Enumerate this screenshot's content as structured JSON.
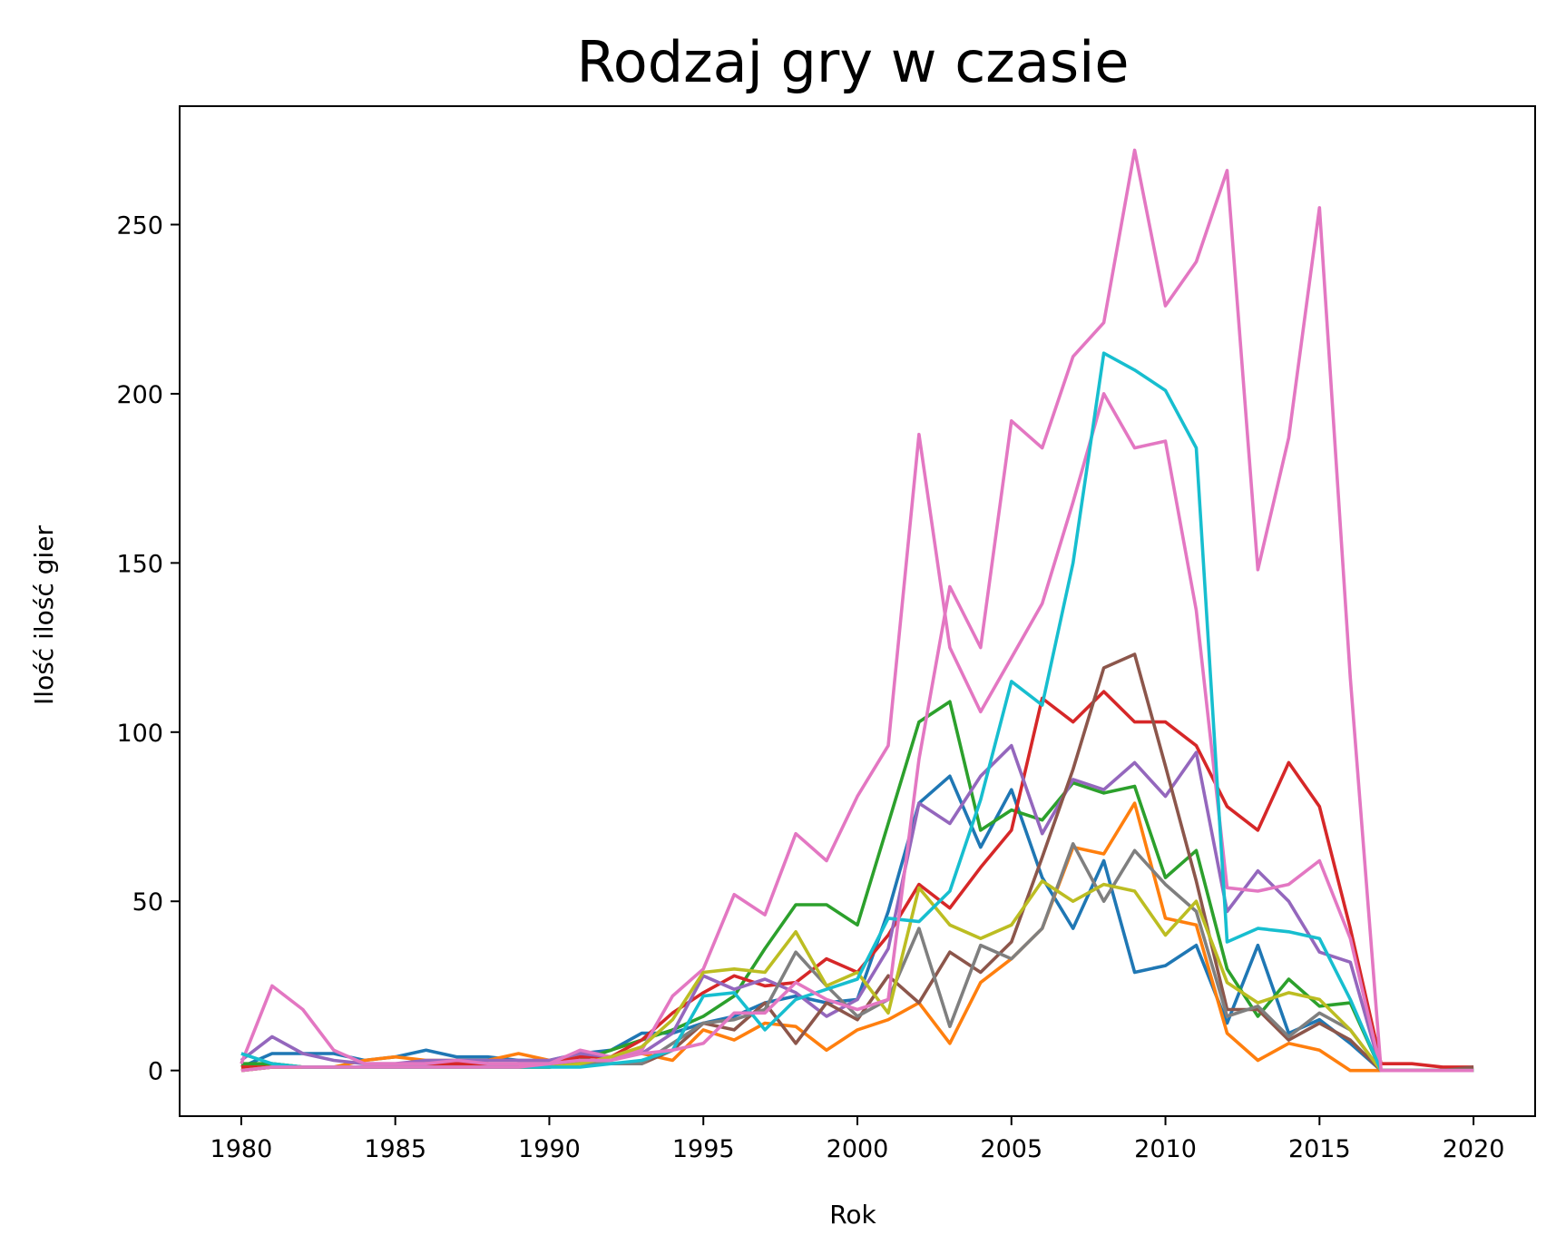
{
  "chart_data": {
    "type": "line",
    "title": "Rodzaj gry w czasie",
    "xlabel": "Rok",
    "ylabel": "Ilość ilość gier",
    "xlim": [
      1978,
      2022
    ],
    "ylim": [
      -13.5,
      285
    ],
    "x_ticks": [
      1980,
      1985,
      1990,
      1995,
      2000,
      2005,
      2010,
      2015,
      2020
    ],
    "y_ticks": [
      0,
      50,
      100,
      150,
      200,
      250
    ],
    "grid": false,
    "legend": "none",
    "x": [
      1980,
      1981,
      1982,
      1983,
      1984,
      1985,
      1986,
      1987,
      1988,
      1989,
      1990,
      1991,
      1992,
      1993,
      1994,
      1995,
      1996,
      1997,
      1998,
      1999,
      2000,
      2001,
      2002,
      2003,
      2004,
      2005,
      2006,
      2007,
      2008,
      2009,
      2010,
      2011,
      2012,
      2013,
      2014,
      2015,
      2016,
      2017,
      2018,
      2019,
      2020
    ],
    "series": [
      {
        "color": "#1f77b4",
        "values": [
          1,
          5,
          5,
          5,
          3,
          4,
          6,
          4,
          4,
          3,
          3,
          5,
          6,
          11,
          11,
          14,
          16,
          20,
          22,
          20,
          21,
          47,
          79,
          87,
          66,
          83,
          57,
          42,
          62,
          29,
          31,
          37,
          14,
          37,
          11,
          15,
          8,
          0,
          0,
          0,
          0
        ]
      },
      {
        "color": "#ff7f0e",
        "values": [
          1,
          2,
          1,
          1,
          3,
          4,
          3,
          3,
          3,
          5,
          3,
          4,
          4,
          5,
          3,
          12,
          9,
          14,
          13,
          6,
          12,
          15,
          20,
          8,
          26,
          33,
          42,
          66,
          64,
          79,
          45,
          43,
          11,
          3,
          8,
          6,
          0,
          0,
          0,
          0,
          0
        ]
      },
      {
        "color": "#2ca02c",
        "values": [
          2,
          2,
          1,
          1,
          1,
          1,
          1,
          2,
          1,
          1,
          1,
          3,
          6,
          9,
          12,
          16,
          22,
          36,
          49,
          49,
          43,
          73,
          103,
          109,
          71,
          77,
          74,
          85,
          82,
          84,
          57,
          65,
          30,
          16,
          27,
          19,
          20,
          0,
          0,
          0,
          0
        ]
      },
      {
        "color": "#d62728",
        "values": [
          1,
          1,
          1,
          1,
          1,
          1,
          2,
          2,
          2,
          2,
          2,
          4,
          4,
          9,
          17,
          23,
          28,
          25,
          26,
          33,
          29,
          40,
          55,
          48,
          60,
          71,
          110,
          103,
          112,
          103,
          103,
          96,
          78,
          71,
          91,
          78,
          42,
          2,
          2,
          1,
          1
        ]
      },
      {
        "color": "#9467bd",
        "values": [
          3,
          10,
          5,
          3,
          2,
          2,
          3,
          3,
          3,
          3,
          3,
          5,
          4,
          5,
          11,
          28,
          24,
          27,
          23,
          16,
          21,
          36,
          79,
          73,
          87,
          96,
          70,
          86,
          83,
          91,
          81,
          94,
          47,
          59,
          50,
          35,
          32,
          0,
          0,
          0,
          0
        ]
      },
      {
        "color": "#8c564b",
        "values": [
          0,
          1,
          1,
          1,
          1,
          1,
          1,
          1,
          1,
          1,
          1,
          2,
          2,
          2,
          6,
          14,
          12,
          20,
          8,
          20,
          15,
          28,
          20,
          35,
          29,
          38,
          63,
          89,
          119,
          123,
          90,
          56,
          18,
          18,
          9,
          14,
          9,
          0,
          0,
          0,
          1
        ]
      },
      {
        "color": "#e377c2",
        "values": [
          2,
          25,
          18,
          6,
          2,
          2,
          2,
          3,
          2,
          2,
          2,
          6,
          4,
          6,
          22,
          30,
          52,
          46,
          70,
          62,
          81,
          96,
          188,
          125,
          106,
          122,
          138,
          168,
          200,
          184,
          186,
          136,
          54,
          53,
          55,
          62,
          39,
          0,
          0,
          0,
          0
        ]
      },
      {
        "color": "#7f7f7f",
        "values": [
          0,
          1,
          1,
          1,
          1,
          1,
          1,
          1,
          1,
          1,
          1,
          2,
          2,
          2,
          8,
          14,
          15,
          18,
          35,
          25,
          16,
          21,
          42,
          13,
          37,
          33,
          42,
          67,
          50,
          65,
          55,
          47,
          16,
          19,
          10,
          17,
          12,
          0,
          0,
          0,
          0
        ]
      },
      {
        "color": "#bcbd22",
        "values": [
          0,
          1,
          1,
          1,
          1,
          1,
          1,
          1,
          1,
          1,
          1,
          2,
          4,
          7,
          15,
          29,
          30,
          29,
          41,
          25,
          29,
          17,
          54,
          43,
          39,
          43,
          56,
          50,
          55,
          53,
          40,
          50,
          26,
          20,
          23,
          21,
          12,
          0,
          0,
          0,
          0
        ]
      },
      {
        "color": "#17becf",
        "values": [
          5,
          2,
          1,
          1,
          1,
          1,
          1,
          1,
          1,
          1,
          1,
          1,
          2,
          3,
          6,
          22,
          23,
          12,
          21,
          24,
          27,
          45,
          44,
          53,
          80,
          115,
          108,
          150,
          212,
          207,
          201,
          184,
          38,
          42,
          41,
          39,
          21,
          0,
          0,
          0,
          0
        ]
      },
      {
        "color": "#e377c2",
        "values": [
          0,
          1,
          1,
          1,
          1,
          1,
          1,
          1,
          1,
          1,
          2,
          3,
          3,
          5,
          6,
          8,
          17,
          17,
          26,
          21,
          18,
          21,
          92,
          143,
          125,
          192,
          184,
          211,
          221,
          272,
          226,
          239,
          266,
          148,
          187,
          255,
          116,
          0,
          0,
          0,
          0
        ]
      }
    ]
  }
}
